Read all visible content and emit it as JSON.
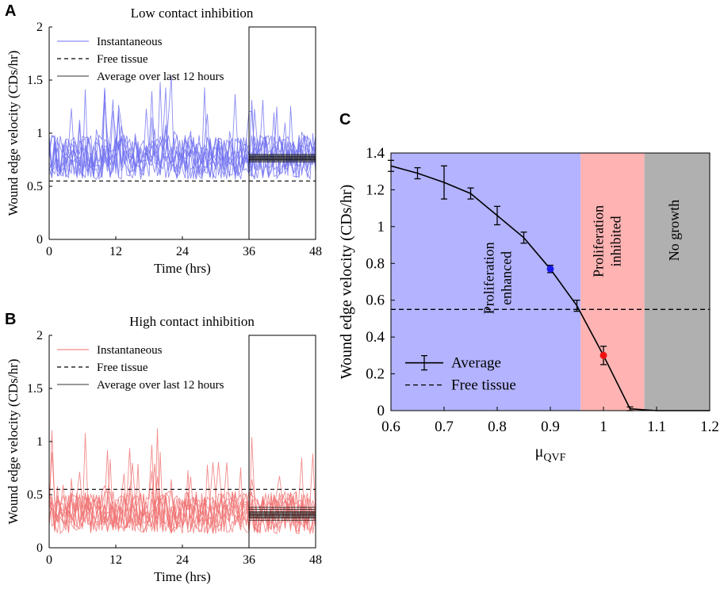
{
  "chart_data": [
    {
      "id": "A",
      "type": "line",
      "panel_label": "A",
      "title": "Low contact inhibition",
      "xlabel": "Time (hrs)",
      "ylabel": "Wound edge velocity (CDs/hr)",
      "xlim": [
        0,
        48
      ],
      "ylim": [
        0,
        2
      ],
      "xticks": [
        0,
        12,
        24,
        36,
        48
      ],
      "yticks": [
        0,
        0.5,
        1,
        1.5,
        2
      ],
      "ytick_labels": [
        "0",
        "0.5",
        "1",
        "1.5",
        "2"
      ],
      "line_color": "#6f6ff0",
      "legend": [
        "Instantaneous",
        "Free tissue",
        "Average over last 12 hours"
      ],
      "free_tissue": 0.55,
      "window": [
        36,
        48
      ],
      "series_count": 10,
      "series_mean": 0.74,
      "series_spread": 0.42,
      "averages": [
        0.73,
        0.74,
        0.75,
        0.76,
        0.76,
        0.77,
        0.77,
        0.78,
        0.79,
        0.8
      ]
    },
    {
      "id": "B",
      "type": "line",
      "panel_label": "B",
      "title": "High contact inhibition",
      "xlabel": "Time (hrs)",
      "ylabel": "Wound edge velocity (CDs/hr)",
      "xlim": [
        0,
        48
      ],
      "ylim": [
        0,
        2
      ],
      "xticks": [
        0,
        12,
        24,
        36,
        48
      ],
      "yticks": [
        0,
        0.5,
        1,
        1.5,
        2
      ],
      "ytick_labels": [
        "0",
        "0.5",
        "1",
        "1.5",
        "2"
      ],
      "line_color": "#f07070",
      "legend": [
        "Instantaneous",
        "Free tissue",
        "Average over last 12 hours"
      ],
      "free_tissue": 0.55,
      "window": [
        36,
        48
      ],
      "series_count": 10,
      "series_mean": 0.3,
      "series_spread": 0.4,
      "averages": [
        0.26,
        0.28,
        0.29,
        0.3,
        0.31,
        0.32,
        0.33,
        0.34,
        0.36,
        0.38
      ]
    },
    {
      "id": "C",
      "type": "line",
      "panel_label": "C",
      "xlabel": "μ",
      "xlabel_sub": "QVF",
      "ylabel": "Wound edge velocity (CDs/hr)",
      "xlim": [
        0.6,
        1.2
      ],
      "ylim": [
        0,
        1.4
      ],
      "xticks": [
        0.6,
        0.7,
        0.8,
        0.9,
        1,
        1.1,
        1.2
      ],
      "xtick_labels": [
        "0.6",
        "0.7",
        "0.8",
        "0.9",
        "1",
        "1.1",
        "1.2"
      ],
      "yticks": [
        0,
        0.2,
        0.4,
        0.6,
        0.8,
        1,
        1.2,
        1.4
      ],
      "ytick_labels": [
        "0",
        "0.2",
        "0.4",
        "0.6",
        "0.8",
        "1",
        "1.2",
        "1.4"
      ],
      "x": [
        0.6,
        0.65,
        0.7,
        0.75,
        0.8,
        0.85,
        0.9,
        0.95,
        1.0,
        1.05,
        1.1,
        1.15,
        1.2
      ],
      "y": [
        1.33,
        1.29,
        1.24,
        1.18,
        1.06,
        0.94,
        0.77,
        0.57,
        0.3,
        0.01,
        0,
        0,
        0
      ],
      "err": [
        0.03,
        0.03,
        0.09,
        0.03,
        0.05,
        0.03,
        0.02,
        0.03,
        0.05,
        0.01,
        0,
        0,
        0
      ],
      "free_tissue": 0.55,
      "highlight_points": [
        {
          "x": 0.9,
          "y": 0.77,
          "color": "#1a1aee"
        },
        {
          "x": 1.0,
          "y": 0.3,
          "color": "#ee1111"
        }
      ],
      "regions": [
        {
          "from": 0.6,
          "to": 0.957,
          "color": "#b3b3ff",
          "label_lines": [
            "Proliferation",
            "enhanced"
          ],
          "label_x": 0.81,
          "label_y": 0.72
        },
        {
          "from": 0.957,
          "to": 1.077,
          "color": "#ffb3b3",
          "label_lines": [
            "Proliferation",
            "inhibited"
          ],
          "label_x": 1.016,
          "label_y": 0.92
        },
        {
          "from": 1.077,
          "to": 1.2,
          "color": "#b0b0b0",
          "label_lines": [
            "No growth"
          ],
          "label_x": 1.142,
          "label_y": 0.98
        }
      ],
      "legend": [
        "Average",
        "Free tissue"
      ]
    }
  ]
}
